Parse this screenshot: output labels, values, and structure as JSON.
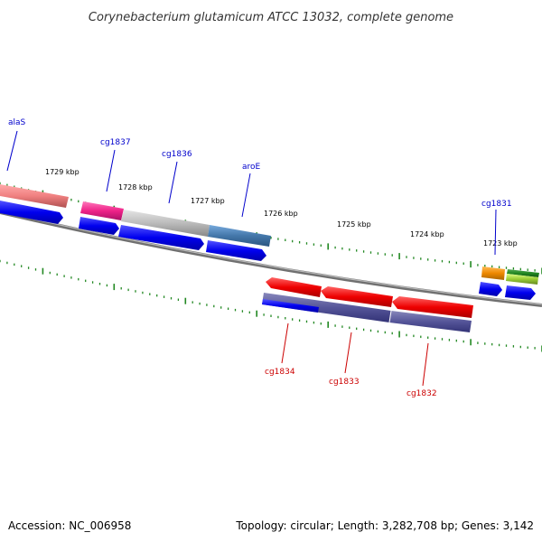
{
  "title": "Corynebacterium glutamicum ATCC 13032, complete genome",
  "footer": {
    "accession": "Accession: NC_006958",
    "summary": "Topology: circular; Length: 3,282,708 bp; Genes: 3,142"
  },
  "colors": {
    "label_plus": "#0000cc",
    "label_minus": "#cc0000",
    "tick": "#228822",
    "backbone": "#808080",
    "cds": "#0000ee"
  },
  "scale_labels": [
    "1729 kbp",
    "1728 kbp",
    "1727 kbp",
    "1726 kbp",
    "1725 kbp",
    "1724 kbp",
    "1723 kbp"
  ],
  "genes_plus": [
    {
      "label": "alaS",
      "color": "#f08080"
    },
    {
      "label": "cg1837",
      "color": "#ee2288"
    },
    {
      "label": "cg1836",
      "color": "#bbbbbb"
    },
    {
      "label": "aroE",
      "color": "#4477aa"
    },
    {
      "label": "cg1831",
      "color": "#ee8800"
    },
    {
      "label": "",
      "color": "#228822"
    },
    {
      "label": "",
      "color": "#99cc33"
    }
  ],
  "genes_minus": [
    {
      "label": "cg1834",
      "color": "#ee0000"
    },
    {
      "label": "cg1833",
      "color": "#ee0000"
    },
    {
      "label": "cg1832",
      "color": "#ee0000"
    }
  ]
}
